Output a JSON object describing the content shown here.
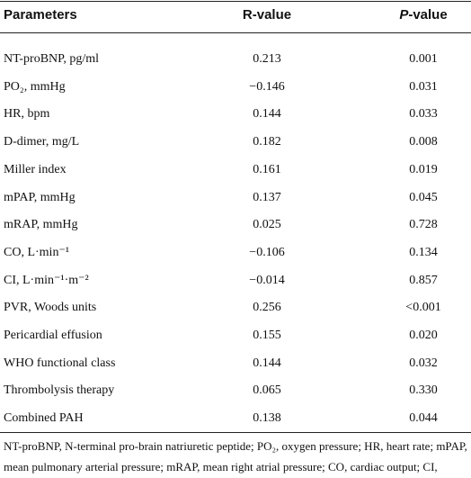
{
  "table": {
    "headers": [
      "Parameters",
      "R-value",
      {
        "italic": "P",
        "rest": "-value"
      }
    ],
    "rows": [
      [
        "NT-proBNP, pg/ml",
        "0.213",
        "0.001"
      ],
      [
        "PO₂, mmHg",
        "−0.146",
        "0.031"
      ],
      [
        "HR, bpm",
        "0.144",
        "0.033"
      ],
      [
        "D-dimer, mg/L",
        "0.182",
        "0.008"
      ],
      [
        "Miller index",
        "0.161",
        "0.019"
      ],
      [
        "mPAP, mmHg",
        "0.137",
        "0.045"
      ],
      [
        "mRAP, mmHg",
        "0.025",
        "0.728"
      ],
      [
        "CO, L·min⁻¹",
        "−0.106",
        "0.134"
      ],
      [
        "CI, L·min⁻¹·m⁻²",
        "−0.014",
        "0.857"
      ],
      [
        "PVR, Woods units",
        "0.256",
        "<0.001"
      ],
      [
        "Pericardial effusion",
        "0.155",
        "0.020"
      ],
      [
        "WHO functional class",
        "0.144",
        "0.032"
      ],
      [
        "Thrombolysis therapy",
        "0.065",
        "0.330"
      ],
      [
        "Combined PAH",
        "0.138",
        "0.044"
      ]
    ],
    "footnote": "NT-proBNP, N-terminal pro-brain natriuretic peptide; PO₂, oxygen pressure; HR, heart rate; mPAP, mean pulmonary arterial pressure; mRAP, mean right atrial pressure; CO, cardiac output; CI, Cardiac index; PVR, pulmonary vascular resistance."
  }
}
